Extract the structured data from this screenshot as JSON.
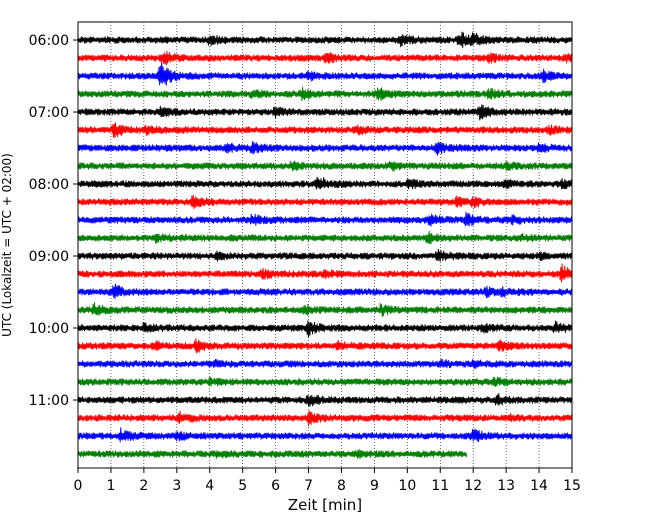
{
  "chart_data": {
    "type": "line",
    "title": "",
    "xlabel": "Zeit  [min]",
    "ylabel": "UTC (Lokalzeit = UTC + 02:00)",
    "xlim": [
      0,
      15
    ],
    "x_ticks": [
      "0",
      "1",
      "2",
      "3",
      "4",
      "5",
      "6",
      "7",
      "8",
      "9",
      "10",
      "11",
      "12",
      "13",
      "14",
      "15"
    ],
    "y_ticks": [
      {
        "label": "06:00",
        "row": 0
      },
      {
        "label": "07:00",
        "row": 4
      },
      {
        "label": "08:00",
        "row": 8
      },
      {
        "label": "09:00",
        "row": 12
      },
      {
        "label": "10:00",
        "row": 16
      },
      {
        "label": "11:00",
        "row": 20
      }
    ],
    "grid": {
      "x_dotted": true,
      "y": false
    },
    "trace_colors": [
      "#000000",
      "#ff0000",
      "#0000ff",
      "#008000"
    ],
    "traces": [
      {
        "start": "06:00",
        "color": "#000000",
        "end_min": 15,
        "events": [
          [
            4.0,
            0.5
          ],
          [
            9.8,
            0.6
          ],
          [
            11.6,
            1.0
          ],
          [
            12.0,
            0.6
          ]
        ]
      },
      {
        "start": "06:15",
        "color": "#ff0000",
        "end_min": 15,
        "events": [
          [
            2.6,
            0.9
          ],
          [
            7.5,
            0.7
          ],
          [
            12.5,
            0.4
          ],
          [
            14.8,
            0.4
          ]
        ]
      },
      {
        "start": "06:30",
        "color": "#0000ff",
        "end_min": 15,
        "events": [
          [
            2.5,
            2.0
          ],
          [
            7.0,
            0.4
          ],
          [
            14.1,
            0.7
          ]
        ]
      },
      {
        "start": "06:45",
        "color": "#008000",
        "end_min": 15,
        "events": [
          [
            5.3,
            0.4
          ],
          [
            6.8,
            0.6
          ],
          [
            9.1,
            0.8
          ],
          [
            12.5,
            0.6
          ]
        ]
      },
      {
        "start": "07:00",
        "color": "#000000",
        "end_min": 15,
        "events": [
          [
            2.5,
            0.5
          ],
          [
            6.0,
            0.6
          ],
          [
            12.2,
            0.8
          ]
        ]
      },
      {
        "start": "07:15",
        "color": "#ff0000",
        "end_min": 15,
        "events": [
          [
            1.1,
            0.8
          ],
          [
            2.1,
            0.4
          ],
          [
            8.5,
            0.4
          ],
          [
            14.3,
            0.4
          ]
        ]
      },
      {
        "start": "07:30",
        "color": "#0000ff",
        "end_min": 15,
        "events": [
          [
            4.5,
            0.4
          ],
          [
            5.3,
            0.5
          ],
          [
            10.9,
            0.7
          ],
          [
            14.0,
            0.4
          ]
        ]
      },
      {
        "start": "07:45",
        "color": "#008000",
        "end_min": 15,
        "events": [
          [
            6.5,
            0.4
          ],
          [
            9.5,
            0.4
          ],
          [
            13.0,
            0.4
          ]
        ]
      },
      {
        "start": "08:00",
        "color": "#000000",
        "end_min": 15,
        "events": [
          [
            7.3,
            1.0
          ],
          [
            10.0,
            0.6
          ],
          [
            13.0,
            0.4
          ],
          [
            14.7,
            0.4
          ]
        ]
      },
      {
        "start": "08:15",
        "color": "#ff0000",
        "end_min": 15,
        "events": [
          [
            3.5,
            0.7
          ],
          [
            11.5,
            0.5
          ],
          [
            12.0,
            0.4
          ]
        ]
      },
      {
        "start": "08:30",
        "color": "#0000ff",
        "end_min": 15,
        "events": [
          [
            5.3,
            0.6
          ],
          [
            10.7,
            0.7
          ],
          [
            11.8,
            0.8
          ],
          [
            13.2,
            0.4
          ]
        ]
      },
      {
        "start": "08:45",
        "color": "#008000",
        "end_min": 15,
        "events": [
          [
            2.4,
            0.5
          ],
          [
            10.6,
            0.7
          ],
          [
            13.5,
            0.3
          ]
        ]
      },
      {
        "start": "09:00",
        "color": "#000000",
        "end_min": 15,
        "events": [
          [
            4.2,
            0.4
          ],
          [
            10.9,
            0.7
          ],
          [
            14.0,
            0.3
          ]
        ]
      },
      {
        "start": "09:15",
        "color": "#ff0000",
        "end_min": 15,
        "events": [
          [
            5.6,
            0.5
          ],
          [
            7.5,
            0.3
          ],
          [
            14.7,
            1.1
          ]
        ]
      },
      {
        "start": "09:30",
        "color": "#0000ff",
        "end_min": 15,
        "events": [
          [
            1.1,
            0.9
          ],
          [
            12.4,
            0.5
          ],
          [
            12.9,
            0.4
          ]
        ]
      },
      {
        "start": "09:45",
        "color": "#008000",
        "end_min": 15,
        "events": [
          [
            0.5,
            0.7
          ],
          [
            6.9,
            0.6
          ],
          [
            9.2,
            0.6
          ]
        ]
      },
      {
        "start": "10:00",
        "color": "#000000",
        "end_min": 15,
        "events": [
          [
            2.0,
            0.6
          ],
          [
            7.0,
            0.9
          ],
          [
            12.3,
            0.4
          ],
          [
            14.5,
            0.6
          ]
        ]
      },
      {
        "start": "10:15",
        "color": "#ff0000",
        "end_min": 15,
        "events": [
          [
            2.3,
            0.5
          ],
          [
            3.6,
            0.7
          ],
          [
            7.9,
            0.4
          ],
          [
            12.8,
            0.6
          ]
        ]
      },
      {
        "start": "10:30",
        "color": "#0000ff",
        "end_min": 15,
        "events": [
          [
            4.2,
            0.3
          ],
          [
            11.0,
            0.4
          ],
          [
            12.0,
            0.3
          ]
        ]
      },
      {
        "start": "10:45",
        "color": "#008000",
        "end_min": 15,
        "events": [
          [
            4.0,
            0.3
          ],
          [
            12.6,
            0.5
          ]
        ]
      },
      {
        "start": "11:00",
        "color": "#000000",
        "end_min": 15,
        "events": [
          [
            7.0,
            0.7
          ],
          [
            12.7,
            0.7
          ]
        ]
      },
      {
        "start": "11:15",
        "color": "#ff0000",
        "end_min": 15,
        "events": [
          [
            3.1,
            0.6
          ],
          [
            7.0,
            0.7
          ],
          [
            13.1,
            0.3
          ]
        ]
      },
      {
        "start": "11:30",
        "color": "#0000ff",
        "end_min": 15,
        "events": [
          [
            1.3,
            0.8
          ],
          [
            3.0,
            0.5
          ],
          [
            12.0,
            0.8
          ]
        ]
      },
      {
        "start": "11:45",
        "color": "#008000",
        "end_min": 11.8,
        "events": [
          [
            4.2,
            0.3
          ],
          [
            8.5,
            0.3
          ]
        ]
      }
    ]
  }
}
